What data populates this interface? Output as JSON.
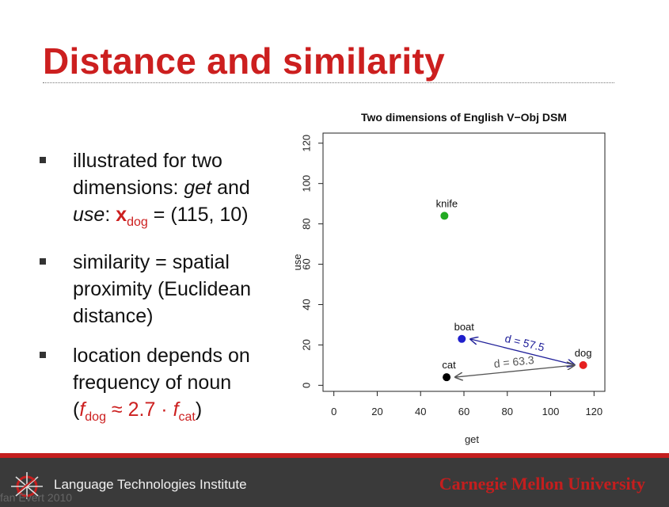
{
  "slide": {
    "title": "Distance and similarity",
    "bullet1": {
      "text": "illustrated for two dimensions: ",
      "get": "get",
      "and": " and ",
      "use": "use",
      "colon": ": ",
      "x": "x",
      "dog": "dog",
      "value": " = (115, 10)"
    },
    "bullet2": {
      "text": "similarity = spatial proximity (Euclidean distance)"
    },
    "bullet3": {
      "text": "location depends on frequency of noun",
      "open": "(",
      "f1": "f",
      "dog": "dog",
      "approx": "  ≈ 2.7 · ",
      "f2": "f",
      "cat": "cat",
      "close": ")"
    }
  },
  "footer": {
    "institute": "Language Technologies Institute",
    "university": "Carnegie Mellon University",
    "copyright": "fan Evert 2010"
  },
  "chart_data": {
    "type": "scatter",
    "title": "Two dimensions of English V−Obj DSM",
    "xlabel": "get",
    "ylabel": "use",
    "xlim": [
      -5,
      125
    ],
    "ylim": [
      -3,
      125
    ],
    "xticks": [
      0,
      20,
      40,
      60,
      80,
      100,
      120
    ],
    "yticks": [
      0,
      20,
      40,
      60,
      80,
      100,
      120
    ],
    "points": [
      {
        "label": "knife",
        "x": 51,
        "y": 84,
        "color": "#22aa22"
      },
      {
        "label": "boat",
        "x": 59,
        "y": 23,
        "color": "#1f1fcc"
      },
      {
        "label": "dog",
        "x": 115,
        "y": 10,
        "color": "#e62020"
      },
      {
        "label": "cat",
        "x": 52,
        "y": 4,
        "color": "#000000"
      }
    ],
    "arrows": [
      {
        "from": "dog",
        "to": "boat",
        "label": "d = 57.5",
        "color": "#1f1f99"
      },
      {
        "from": "dog",
        "to": "cat",
        "label": "d = 63.3",
        "color": "#555555"
      }
    ]
  }
}
